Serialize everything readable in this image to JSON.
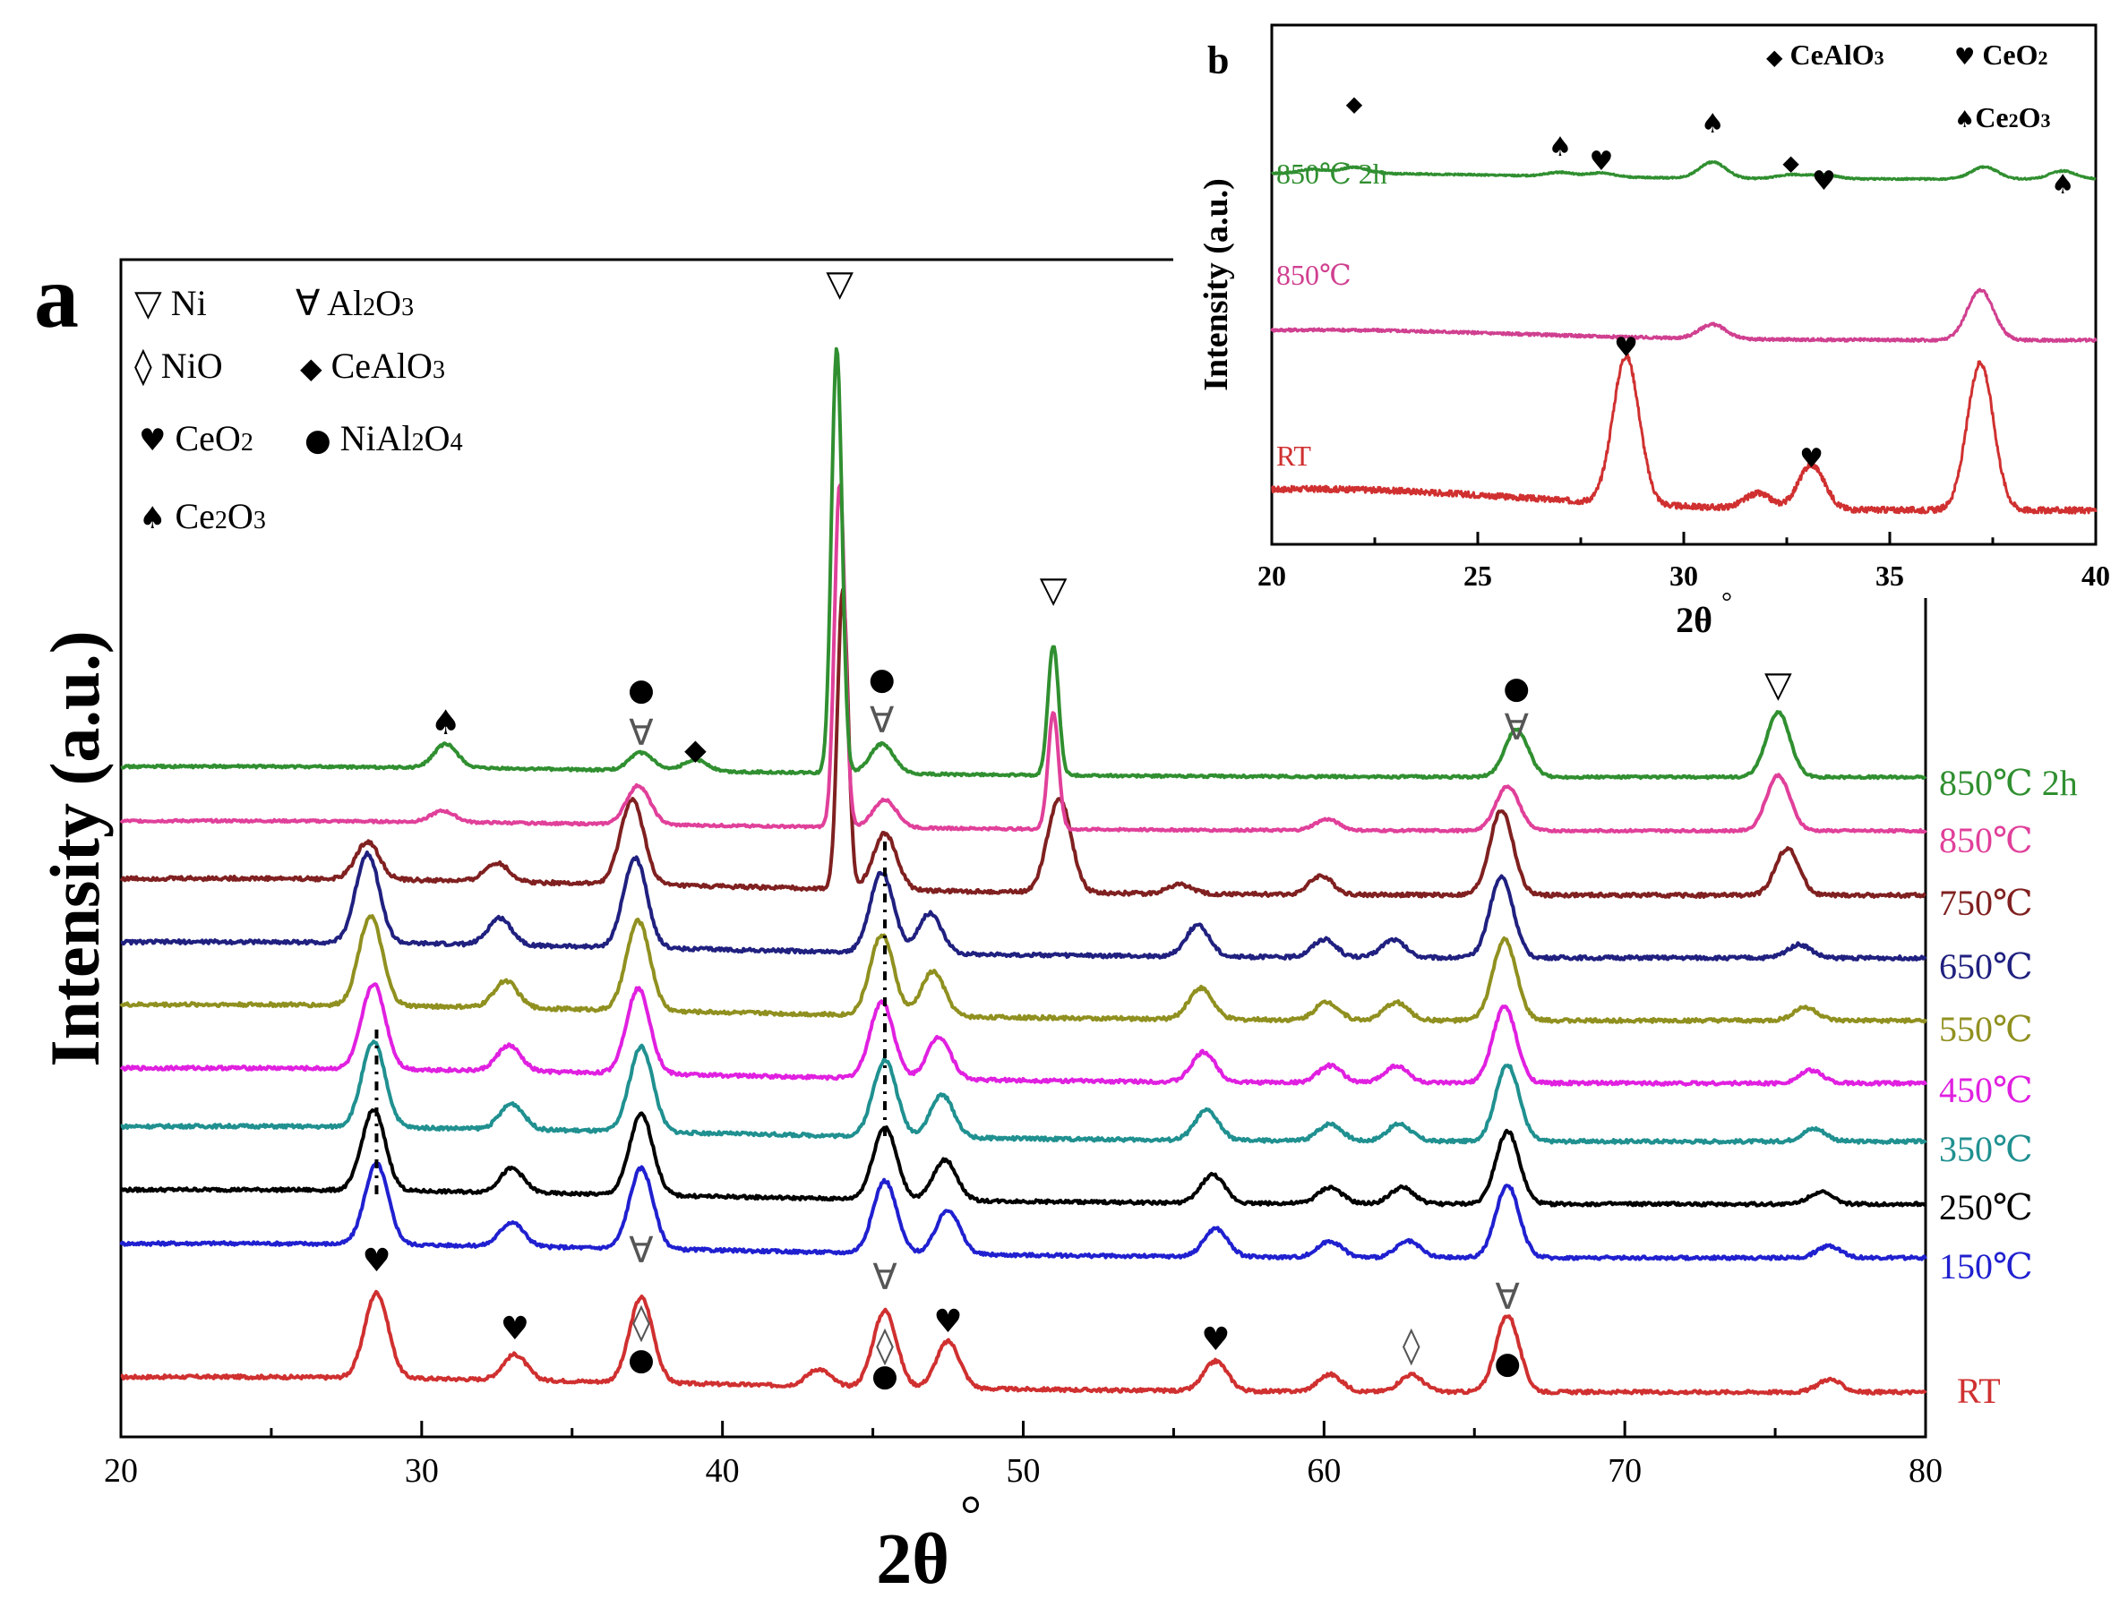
{
  "chart_data": [
    {
      "panel": "a",
      "type": "line",
      "xlabel": "2θ °",
      "ylabel": "Intensity (a.u.)",
      "xlim": [
        20,
        80
      ],
      "xticks": [
        20,
        30,
        40,
        50,
        60,
        70,
        80
      ],
      "legend": [
        {
          "symbol": "▽",
          "label": "Ni"
        },
        {
          "symbol": "∀",
          "label": "Al2O3"
        },
        {
          "symbol": "◊",
          "label": "NiO"
        },
        {
          "symbol": "◆",
          "label": "CeAlO3"
        },
        {
          "symbol": "♥",
          "label": "CeO2"
        },
        {
          "symbol": "●",
          "label": "NiAl2O4"
        },
        {
          "symbol": "♠",
          "label": "Ce2O3"
        }
      ],
      "series": [
        {
          "name": "RT",
          "color": "#d03030",
          "peaks": [
            [
              28.5,
              1.0
            ],
            [
              33.1,
              0.3
            ],
            [
              37.3,
              1.0
            ],
            [
              43.2,
              0.2
            ],
            [
              45.4,
              0.9
            ],
            [
              47.5,
              0.55
            ],
            [
              56.4,
              0.35
            ],
            [
              60.2,
              0.2
            ],
            [
              62.9,
              0.2
            ],
            [
              66.1,
              0.9
            ],
            [
              76.8,
              0.15
            ]
          ]
        },
        {
          "name": "150℃",
          "color": "#2020d0",
          "peaks": [
            [
              28.5,
              1.0
            ],
            [
              33.0,
              0.3
            ],
            [
              37.3,
              1.0
            ],
            [
              45.4,
              0.9
            ],
            [
              47.5,
              0.55
            ],
            [
              56.4,
              0.35
            ],
            [
              60.2,
              0.2
            ],
            [
              62.8,
              0.2
            ],
            [
              66.1,
              0.9
            ],
            [
              76.8,
              0.15
            ]
          ]
        },
        {
          "name": "250℃",
          "color": "#000000",
          "peaks": [
            [
              28.4,
              1.0
            ],
            [
              33.0,
              0.3
            ],
            [
              37.3,
              1.0
            ],
            [
              45.4,
              0.9
            ],
            [
              47.4,
              0.5
            ],
            [
              56.3,
              0.35
            ],
            [
              60.2,
              0.2
            ],
            [
              62.6,
              0.2
            ],
            [
              66.1,
              0.9
            ],
            [
              76.5,
              0.15
            ]
          ]
        },
        {
          "name": "350℃",
          "color": "#209090",
          "peaks": [
            [
              28.4,
              1.0
            ],
            [
              33.0,
              0.3
            ],
            [
              37.3,
              1.0
            ],
            [
              45.4,
              0.9
            ],
            [
              47.3,
              0.5
            ],
            [
              56.1,
              0.35
            ],
            [
              60.2,
              0.2
            ],
            [
              62.5,
              0.2
            ],
            [
              66.1,
              0.9
            ],
            [
              76.3,
              0.15
            ]
          ]
        },
        {
          "name": "450℃",
          "color": "#e020e0",
          "peaks": [
            [
              28.4,
              1.0
            ],
            [
              32.9,
              0.3
            ],
            [
              37.2,
              1.0
            ],
            [
              45.3,
              0.9
            ],
            [
              47.2,
              0.5
            ],
            [
              56.0,
              0.35
            ],
            [
              60.2,
              0.2
            ],
            [
              62.4,
              0.2
            ],
            [
              66.0,
              0.9
            ],
            [
              76.2,
              0.15
            ]
          ]
        },
        {
          "name": "550℃",
          "color": "#909020",
          "peaks": [
            [
              28.3,
              1.0
            ],
            [
              32.8,
              0.3
            ],
            [
              37.2,
              1.0
            ],
            [
              45.3,
              0.9
            ],
            [
              47.0,
              0.5
            ],
            [
              55.9,
              0.35
            ],
            [
              60.1,
              0.2
            ],
            [
              62.4,
              0.2
            ],
            [
              66.0,
              0.9
            ],
            [
              76.0,
              0.15
            ]
          ]
        },
        {
          "name": "650℃",
          "color": "#202080",
          "peaks": [
            [
              28.2,
              1.0
            ],
            [
              32.6,
              0.3
            ],
            [
              37.1,
              1.0
            ],
            [
              45.3,
              0.9
            ],
            [
              46.9,
              0.45
            ],
            [
              55.8,
              0.35
            ],
            [
              60.0,
              0.2
            ],
            [
              62.3,
              0.2
            ],
            [
              65.9,
              0.9
            ],
            [
              75.8,
              0.15
            ]
          ]
        },
        {
          "name": "750℃",
          "color": "#802020",
          "peaks": [
            [
              28.2,
              0.4
            ],
            [
              32.5,
              0.2
            ],
            [
              37.0,
              0.9
            ],
            [
              44.0,
              3.2
            ],
            [
              45.4,
              0.6
            ],
            [
              51.2,
              1.0
            ],
            [
              55.2,
              0.1
            ],
            [
              59.9,
              0.2
            ],
            [
              65.9,
              0.9
            ],
            [
              75.4,
              0.5
            ]
          ]
        },
        {
          "name": "850℃",
          "color": "#e0409a",
          "peaks": [
            [
              30.7,
              0.2
            ],
            [
              37.2,
              0.7
            ],
            [
              43.9,
              6.2
            ],
            [
              45.4,
              0.5
            ],
            [
              51.0,
              2.1
            ],
            [
              60.1,
              0.2
            ],
            [
              66.1,
              0.8
            ],
            [
              75.1,
              1.0
            ]
          ]
        },
        {
          "name": "850℃  2h",
          "color": "#308f30",
          "peaks": [
            [
              30.8,
              0.4
            ],
            [
              37.3,
              0.3
            ],
            [
              39.1,
              0.2
            ],
            [
              43.8,
              7.2
            ],
            [
              45.3,
              0.5
            ],
            [
              51.0,
              2.2
            ],
            [
              66.4,
              0.8
            ],
            [
              75.1,
              1.1
            ]
          ]
        }
      ],
      "annotations": [
        {
          "symbol": "♠",
          "x": 30.8
        },
        {
          "symbol": "●",
          "x": 37.3
        },
        {
          "symbol": "∀",
          "x": 37.3
        },
        {
          "symbol": "◆",
          "x": 39.1
        },
        {
          "symbol": "▽",
          "x": 43.9
        },
        {
          "symbol": "●",
          "x": 45.3
        },
        {
          "symbol": "∀",
          "x": 45.3
        },
        {
          "symbol": "▽",
          "x": 51.0
        },
        {
          "symbol": "●",
          "x": 66.4
        },
        {
          "symbol": "∀",
          "x": 66.4
        },
        {
          "symbol": "▽",
          "x": 75.1
        },
        {
          "symbol": "♥",
          "x": 28.5
        },
        {
          "symbol": "♥",
          "x": 33.1
        },
        {
          "symbol": "∀",
          "x": 37.3
        },
        {
          "symbol": "◊",
          "x": 37.3
        },
        {
          "symbol": "●",
          "x": 37.3
        },
        {
          "symbol": "∀",
          "x": 45.4
        },
        {
          "symbol": "◊",
          "x": 45.4
        },
        {
          "symbol": "●",
          "x": 45.4
        },
        {
          "symbol": "♥",
          "x": 47.5
        },
        {
          "symbol": "♥",
          "x": 56.4
        },
        {
          "symbol": "◊",
          "x": 62.9
        },
        {
          "symbol": "∀",
          "x": 66.1
        },
        {
          "symbol": "●",
          "x": 66.1
        }
      ]
    },
    {
      "panel": "b",
      "type": "line",
      "xlabel": "2θ °",
      "ylabel": "Intensity (a.u.)",
      "xlim": [
        20,
        40
      ],
      "xticks": [
        20,
        25,
        30,
        35,
        40
      ],
      "legend": [
        {
          "symbol": "◆",
          "label": "CeAlO3"
        },
        {
          "symbol": "♥",
          "label": "CeO2"
        },
        {
          "symbol": "♠",
          "label": "Ce2O3"
        }
      ],
      "series": [
        {
          "name": "RT",
          "color": "#d03030",
          "peaks": [
            [
              28.6,
              1.0
            ],
            [
              31.8,
              0.1
            ],
            [
              33.1,
              0.3
            ],
            [
              37.2,
              1.0
            ]
          ]
        },
        {
          "name": "850℃",
          "color": "#d04090",
          "peaks": [
            [
              30.7,
              0.2
            ],
            [
              37.2,
              0.7
            ]
          ]
        },
        {
          "name": "850℃  2h",
          "color": "#308f30",
          "peaks": [
            [
              21.0,
              0.1
            ],
            [
              22.0,
              0.15
            ],
            [
              27.0,
              0.1
            ],
            [
              28.0,
              0.1
            ],
            [
              30.7,
              0.4
            ],
            [
              32.6,
              0.1
            ],
            [
              33.4,
              0.1
            ],
            [
              37.3,
              0.3
            ],
            [
              39.2,
              0.2
            ]
          ]
        }
      ],
      "annotations": [
        {
          "symbol": "◆",
          "x": 22.0
        },
        {
          "symbol": "♠",
          "x": 27.0
        },
        {
          "symbol": "♥",
          "x": 28.0
        },
        {
          "symbol": "♠",
          "x": 30.7
        },
        {
          "symbol": "◆",
          "x": 32.6
        },
        {
          "symbol": "♥",
          "x": 33.4
        },
        {
          "symbol": "♠",
          "x": 39.2
        },
        {
          "symbol": "♥",
          "x": 28.6
        },
        {
          "symbol": "♥",
          "x": 33.1
        }
      ]
    }
  ],
  "labels": {
    "a": {
      "panel_letter": "a",
      "xlabel": "2θ",
      "xlabel_deg": "°",
      "ylabel": "Intensity (a.u.)"
    },
    "b": {
      "panel_letter": "b",
      "xlabel": "2θ",
      "xlabel_deg": "°",
      "ylabel": "Intensity (a.u.)"
    }
  },
  "legend_a": {
    "ni": "Ni",
    "al_a": "Al",
    "al_s": "2",
    "al_b": "O",
    "al_s2": "3",
    "nio": "NiO",
    "ceal": "CeAlO",
    "ceal_s": "3",
    "ceo": "CeO",
    "ceo_s": "2",
    "nial_a": "NiAl",
    "nial_s": "2",
    "nial_b": "O",
    "nial_s2": "4",
    "ce2_a": "Ce",
    "ce2_s": "2",
    "ce2_b": "O",
    "ce2_s2": "3"
  },
  "legend_b": {
    "ceal": "CeAlO",
    "ceal_s": "3",
    "ceo": "CeO",
    "ceo_s": "2",
    "ce2_a": "Ce",
    "ce2_s": "2",
    "ce2_b": "O",
    "ce2_s2": "3"
  }
}
